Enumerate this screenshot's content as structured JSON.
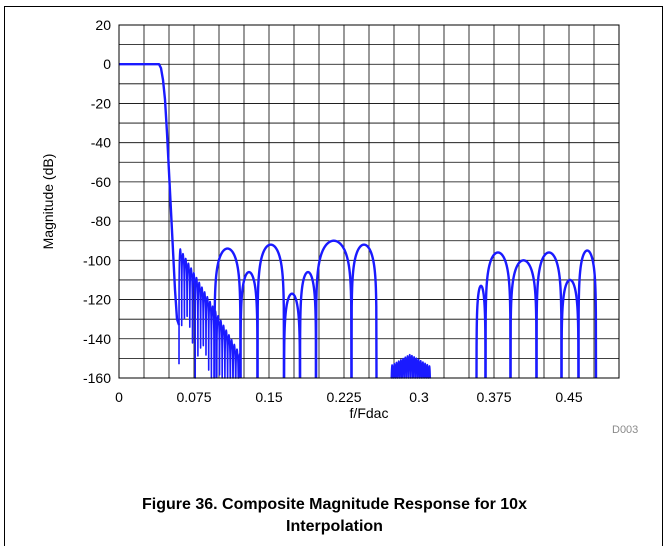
{
  "chart_data": {
    "type": "line",
    "title": "",
    "xlabel": "f/Fdac",
    "ylabel": "Magnitude (dB)",
    "xlim": [
      0,
      0.5
    ],
    "ylim": [
      -160,
      20
    ],
    "x_ticks": [
      0,
      0.075,
      0.15,
      0.225,
      0.3,
      0.375,
      0.45
    ],
    "x_tick_labels": [
      "0",
      "0.075",
      "0.15",
      "0.225",
      "0.3",
      "0.375",
      "0.45"
    ],
    "y_ticks": [
      20,
      0,
      -20,
      -40,
      -60,
      -80,
      -100,
      -120,
      -140,
      -160
    ],
    "y_tick_labels": [
      "20",
      "0",
      "-20",
      "-40",
      "-60",
      "-80",
      "-100",
      "-120",
      "-140",
      "-160"
    ],
    "grid": true,
    "line_color": "#1a1aff",
    "series": [
      {
        "x": [
          0,
          0.01,
          0.02,
          0.03,
          0.035,
          0.04,
          0.042,
          0.044,
          0.046,
          0.048,
          0.05,
          0.052,
          0.054,
          0.056,
          0.058,
          0.06
        ],
        "y": [
          0,
          0,
          0,
          0,
          0,
          0,
          -2,
          -8,
          -18,
          -35,
          -55,
          -75,
          -95,
          -115,
          -130,
          -133
        ]
      }
    ],
    "stopband_lobes": [
      {
        "x_start": 0.0955,
        "x_end": 0.1215,
        "peak": -94
      },
      {
        "x_start": 0.1215,
        "x_end": 0.1385,
        "peak": -106
      },
      {
        "x_start": 0.1385,
        "x_end": 0.165,
        "peak": -92
      },
      {
        "x_start": 0.165,
        "x_end": 0.181,
        "peak": -117
      },
      {
        "x_start": 0.181,
        "x_end": 0.197,
        "peak": -106
      },
      {
        "x_start": 0.197,
        "x_end": 0.2325,
        "peak": -90
      },
      {
        "x_start": 0.2325,
        "x_end": 0.2575,
        "peak": -92
      },
      {
        "x_start": 0.3575,
        "x_end": 0.3665,
        "peak": -113
      },
      {
        "x_start": 0.3665,
        "x_end": 0.3915,
        "peak": -96
      },
      {
        "x_start": 0.3915,
        "x_end": 0.4175,
        "peak": -100
      },
      {
        "x_start": 0.4175,
        "x_end": 0.4425,
        "peak": -96
      },
      {
        "x_start": 0.4425,
        "x_end": 0.4595,
        "peak": -110
      },
      {
        "x_start": 0.4595,
        "x_end": 0.477,
        "peak": -95
      }
    ],
    "figure_id": "D003"
  },
  "caption": {
    "line1": "Figure 36. Composite Magnitude Response for 10x",
    "line2": "Interpolation"
  }
}
